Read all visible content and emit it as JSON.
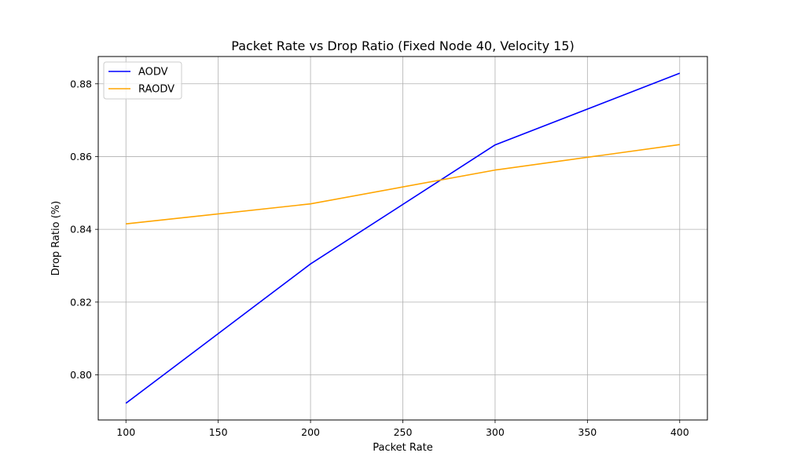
{
  "chart_data": {
    "type": "line",
    "title": "Packet Rate vs Drop Ratio (Fixed Node 40, Velocity 15)",
    "xlabel": "Packet Rate",
    "ylabel": "Drop Ratio (%)",
    "x": [
      100,
      200,
      300,
      400
    ],
    "xticks": [
      100,
      150,
      200,
      250,
      300,
      350,
      400
    ],
    "yticks": [
      0.8,
      0.82,
      0.84,
      0.86,
      0.88
    ],
    "xlim": [
      85,
      415
    ],
    "ylim": [
      0.7876,
      0.8875
    ],
    "grid": true,
    "legend_position": "top-left",
    "series": [
      {
        "name": "AODV",
        "color": "#0000ff",
        "values": [
          0.7922,
          0.8305,
          0.8632,
          0.8829
        ]
      },
      {
        "name": "RAODV",
        "color": "#ffa500",
        "values": [
          0.8415,
          0.847,
          0.8563,
          0.8633
        ]
      }
    ]
  }
}
